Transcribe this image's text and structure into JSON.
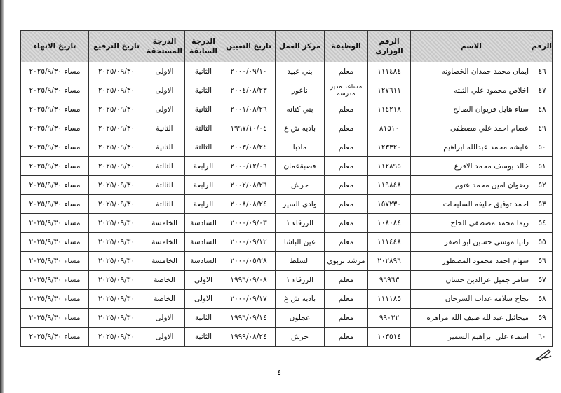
{
  "table": {
    "headers": [
      "الرقم",
      "الاسم",
      "الرقم الوزاري",
      "الوظيفة",
      "مركز العمل",
      "تاريخ التعيين",
      "الدرجة السابقة",
      "الدرجة المستحقة",
      "تاريخ الترفيع",
      "تاريخ الانهاء"
    ],
    "rows": [
      [
        "٤٦",
        "ايمان محمد حمدان الخصاونه",
        "١١١٤٨٤",
        "معلم",
        "بني عبيد",
        "٢٠٠٠/٠٩/١٠",
        "الثانية",
        "الاولى",
        "٢٠٢٥/٠٩/٣٠",
        "مساء ٢٠٢٥/٩/٣٠"
      ],
      [
        "٤٧",
        "اخلاص محمود علي الثبته",
        "١٢٧٦١١",
        "مساعد مدير مدرسه",
        "ناعور",
        "٢٠٠٤/٠٨/٢٣",
        "الثانية",
        "الاولى",
        "٢٠٢٥/٠٩/٣٠",
        "مساء ٢٠٢٥/٩/٣٠"
      ],
      [
        "٤٨",
        "سناء هايل فريوان الصالح",
        "١١٤٢١٨",
        "معلم",
        "بني كنانه",
        "٢٠٠١/٠٨/٢٦",
        "الثانية",
        "الاولى",
        "٢٠٢٥/٠٩/٣٠",
        "مساء ٢٠٢٥/٩/٣٠"
      ],
      [
        "٤٩",
        "عصام احمد علي مصطفى",
        "٨١٥١٠",
        "معلم",
        "باديه ش غ",
        "١٩٩٧/١٠/٠٤",
        "الثالثة",
        "الثانية",
        "٢٠٢٥/٠٩/٣٠",
        "مساء ٢٠٢٥/٩/٣٠"
      ],
      [
        "٥٠",
        "عايشه محمد عبدالله ابراهيم",
        "١٢٣٣٢٠",
        "معلم",
        "مادبا",
        "٢٠٠٣/٠٨/٢٤",
        "الثالثة",
        "الثانية",
        "٢٠٢٥/٠٩/٣٠",
        "مساء ٢٠٢٥/٩/٣٠"
      ],
      [
        "٥١",
        "خالد يوسف محمد الاقرع",
        "١١٢٨٩٥",
        "معلم",
        "قصبةعمان",
        "٢٠٠٠/١٢/٠٦",
        "الرابعة",
        "الثالثة",
        "٢٠٢٥/٠٩/٣٠",
        "مساء ٢٠٢٥/٩/٣٠"
      ],
      [
        "٥٢",
        "رضوان امين محمد عتوم",
        "١١٩٨٤٨",
        "معلم",
        "جرش",
        "٢٠٠٢/٠٨/٢٦",
        "الرابعة",
        "الثالثة",
        "٢٠٢٥/٠٩/٣٠",
        "مساء ٢٠٢٥/٩/٣٠"
      ],
      [
        "٥٣",
        "احمد توفيق خليفه السليحات",
        "١٥٧٢٣٠",
        "معلم",
        "وادي السير",
        "٢٠٠٨/٠٨/٢٤",
        "الرابعة",
        "الثالثة",
        "٢٠٢٥/٠٩/٣٠",
        "مساء ٢٠٢٥/٩/٣٠"
      ],
      [
        "٥٤",
        "ريما محمد مصطفى الحاج",
        "١٠٨٠٨٤",
        "معلم",
        "الزرقاء ١",
        "٢٠٠٠/٠٩/٠٣",
        "السادسة",
        "الخامسة",
        "٢٠٢٥/٠٩/٣٠",
        "مساء ٢٠٢٥/٩/٣٠"
      ],
      [
        "٥٥",
        "رانيا موسى حسين ابو اصفر",
        "١١١٤٤٨",
        "معلم",
        "عين الباشا",
        "٢٠٠٠/٠٩/١٢",
        "السادسة",
        "الخامسة",
        "٢٠٢٥/٠٩/٣٠",
        "مساء ٢٠٢٥/٩/٣٠"
      ],
      [
        "٥٦",
        "سهام احمد محمود المصطور",
        "٢٠٢٨٩٦",
        "مرشد تربوي",
        "السلط",
        "٢٠٠٠/٠٥/٢٨",
        "السادسة",
        "الخامسة",
        "٢٠٢٥/٠٩/٣٠",
        "مساء ٢٠٢٥/٩/٣٠"
      ],
      [
        "٥٧",
        "سامر جميل عزالدين حسان",
        "٩٦٩٦٣",
        "معلم",
        "الزرقاء ١",
        "١٩٩٦/٠٩/٠٨",
        "الاولى",
        "الخاصة",
        "٢٠٢٥/٠٩/٣٠",
        "مساء ٢٠٢٥/٩/٣٠"
      ],
      [
        "٥٨",
        "نجاح سلامه عذاب السرحان",
        "١١١١٨٥",
        "معلم",
        "باديه ش غ",
        "٢٠٠٠/٠٩/١٧",
        "الاولى",
        "الخاصة",
        "٢٠٢٥/٠٩/٣٠",
        "مساء ٢٠٢٥/٩/٣٠"
      ],
      [
        "٥٩",
        "ميخائيل عبدالله ضيف الله مزاهره",
        "٩٩٠٢٢",
        "معلم",
        "عجلون",
        "١٩٩٦/٠٩/١٤",
        "الثانية",
        "الاولى",
        "٢٠٢٥/٠٩/٣٠",
        "مساء ٢٠٢٥/٩/٣٠"
      ],
      [
        "٦٠",
        "اسماء علي ابراهيم السمير",
        "١٠٣٥١٤",
        "معلم",
        "جرش",
        "١٩٩٩/٠٨/٢٤",
        "الثانية",
        "الاولى",
        "٢٠٢٥/٠٩/٣٠",
        "مساء ٢٠٢٥/٩/٣٠"
      ]
    ]
  },
  "footer": {
    "page_number": "٤"
  },
  "colors": {
    "header_bg": "#cfcfcf",
    "border": "#333333"
  }
}
